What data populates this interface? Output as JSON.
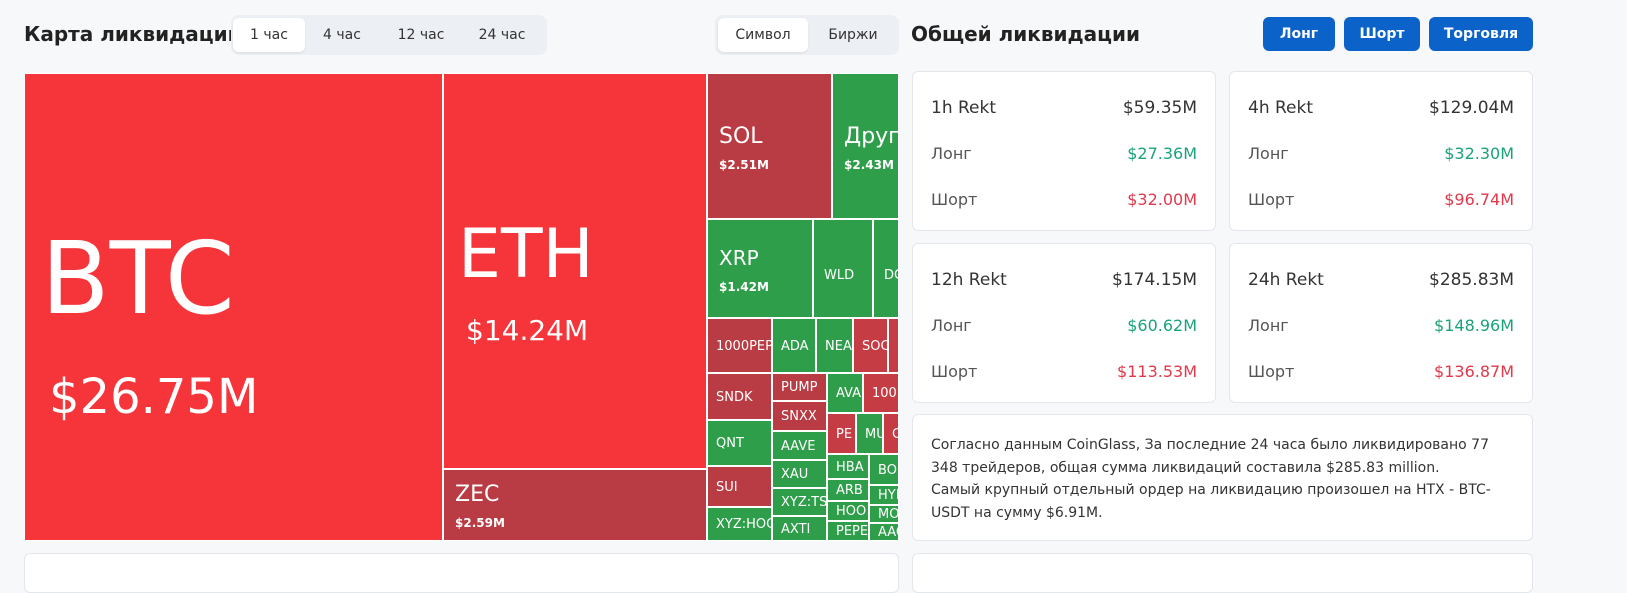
{
  "header": {
    "title": "Карта ликвидаций",
    "tabs": [
      "1 час",
      "4 час",
      "12 час",
      "24 час"
    ],
    "view_tabs": [
      "Символ",
      "Биржи"
    ]
  },
  "treemap": {
    "tiles": [
      {
        "label": "BTC",
        "value": "$26.75M",
        "color": "#f5353a"
      },
      {
        "label": "ETH",
        "value": "$14.24M",
        "color": "#f5353a"
      },
      {
        "label": "ZEC",
        "value": "$2.59M",
        "color": "#b93b43"
      },
      {
        "label": "SOL",
        "value": "$2.51M",
        "color": "#b93b43"
      },
      {
        "label": "Друг",
        "value": "$2.43M",
        "color": "#2f9e4b"
      },
      {
        "label": "XRP",
        "value": "$1.42M",
        "color": "#2f9e4b"
      },
      {
        "label": "WLD",
        "color": "#2f9e4b"
      },
      {
        "label": "DC",
        "color": "#2f9e4b"
      },
      {
        "label": "1000PEP",
        "color": "#b93b43"
      },
      {
        "label": "ADA",
        "color": "#2f9e4b"
      },
      {
        "label": "NEA",
        "color": "#2f9e4b"
      },
      {
        "label": "SOC",
        "color": "#c63c44"
      },
      {
        "label": "SNDK",
        "color": "#b93b43"
      },
      {
        "label": "QNT",
        "color": "#2f9e4b"
      },
      {
        "label": "SUI",
        "color": "#b93b43"
      },
      {
        "label": "XYZ:HOO",
        "color": "#2f9e4b"
      },
      {
        "label": "PUMP",
        "color": "#b93b43"
      },
      {
        "label": "SNXX",
        "color": "#b93b43"
      },
      {
        "label": "AAVE",
        "color": "#2f9e4b"
      },
      {
        "label": "XAU",
        "color": "#2f9e4b"
      },
      {
        "label": "XYZ:TS",
        "color": "#2f9e4b"
      },
      {
        "label": "AXTI",
        "color": "#2f9e4b"
      },
      {
        "label": "AVA",
        "color": "#2f9e4b"
      },
      {
        "label": "100",
        "color": "#c63c44"
      },
      {
        "label": "PE",
        "color": "#c63c44"
      },
      {
        "label": "MU",
        "color": "#2f9e4b"
      },
      {
        "label": "C",
        "color": "#c63c44"
      },
      {
        "label": "HBA",
        "color": "#2f9e4b"
      },
      {
        "label": "ARB",
        "color": "#2f9e4b"
      },
      {
        "label": "HOO",
        "color": "#2f9e4b"
      },
      {
        "label": "PEPE",
        "color": "#2f9e4b"
      },
      {
        "label": "BO",
        "color": "#2f9e4b"
      },
      {
        "label": "HYI",
        "color": "#2f9e4b"
      },
      {
        "label": "MO",
        "color": "#2f9e4b"
      },
      {
        "label": "AAC",
        "color": "#2f9e4b"
      }
    ]
  },
  "summary": {
    "title": "Общей ликвидации",
    "buttons": [
      "Лонг",
      "Шорт",
      "Торговля"
    ],
    "cards": [
      {
        "title": "1h Rekt",
        "total": "$59.35M",
        "rows": [
          {
            "label": "Лонг",
            "value": "$27.36M"
          },
          {
            "label": "Шорт",
            "value": "$32.00M"
          }
        ]
      },
      {
        "title": "4h Rekt",
        "total": "$129.04M",
        "rows": [
          {
            "label": "Лонг",
            "value": "$32.30M"
          },
          {
            "label": "Шорт",
            "value": "$96.74M"
          }
        ]
      },
      {
        "title": "12h Rekt",
        "total": "$174.15M",
        "rows": [
          {
            "label": "Лонг",
            "value": "$60.62M"
          },
          {
            "label": "Шорт",
            "value": "$113.53M"
          }
        ]
      },
      {
        "title": "24h Rekt",
        "total": "$285.83M",
        "rows": [
          {
            "label": "Лонг",
            "value": "$148.96M"
          },
          {
            "label": "Шорт",
            "value": "$136.87M"
          }
        ]
      }
    ],
    "note": [
      "Согласно данным CoinGlass, За последние 24 часа было ликвидировано 77 348 трейдеров, общая сумма ликвидаций составила $285.83 million.",
      "Самый крупный отдельный ордер на ликвидацию произошел на HTX - BTC-USDT на сумму $6.91M."
    ]
  }
}
